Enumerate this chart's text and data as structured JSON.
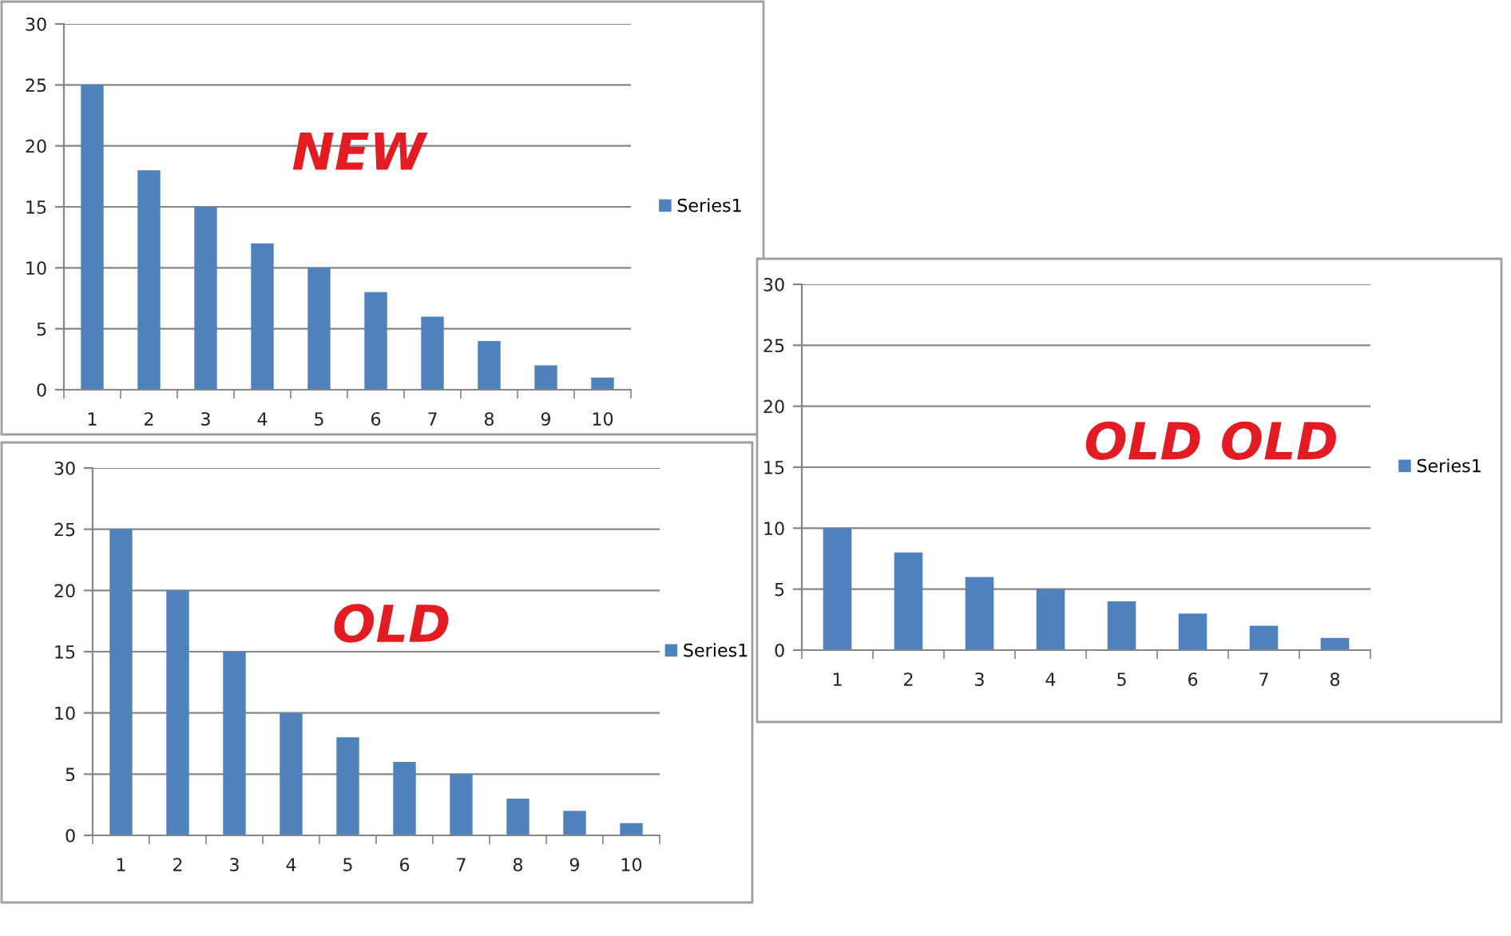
{
  "chart_data": [
    {
      "type": "bar",
      "categories": [
        "1",
        "2",
        "3",
        "4",
        "5",
        "6",
        "7",
        "8",
        "9",
        "10"
      ],
      "series": [
        {
          "name": "Series1",
          "color": "#4f81bd",
          "values": [
            25,
            18,
            15,
            12,
            10,
            8,
            6,
            4,
            2,
            1
          ]
        }
      ],
      "ylim": [
        0,
        30
      ],
      "yticks": [
        0,
        5,
        10,
        15,
        20,
        25,
        30
      ],
      "grid": "y",
      "legend": "right",
      "annotations": [
        "NEW"
      ]
    },
    {
      "type": "bar",
      "categories": [
        "1",
        "2",
        "3",
        "4",
        "5",
        "6",
        "7",
        "8",
        "9",
        "10"
      ],
      "series": [
        {
          "name": "Series1",
          "color": "#4f81bd",
          "values": [
            25,
            20,
            15,
            10,
            8,
            6,
            5,
            3,
            2,
            1
          ]
        }
      ],
      "ylim": [
        0,
        30
      ],
      "yticks": [
        0,
        5,
        10,
        15,
        20,
        25,
        30
      ],
      "grid": "y",
      "legend": "right",
      "annotations": [
        "OLD"
      ]
    },
    {
      "type": "bar",
      "categories": [
        "1",
        "2",
        "3",
        "4",
        "5",
        "6",
        "7",
        "8"
      ],
      "series": [
        {
          "name": "Series1",
          "color": "#4f81bd",
          "values": [
            10,
            8,
            6,
            5,
            4,
            3,
            2,
            1
          ]
        }
      ],
      "ylim": [
        0,
        30
      ],
      "yticks": [
        0,
        5,
        10,
        15,
        20,
        25,
        30
      ],
      "grid": "y",
      "legend": "right",
      "annotations": [
        "OLD OLD"
      ]
    }
  ]
}
